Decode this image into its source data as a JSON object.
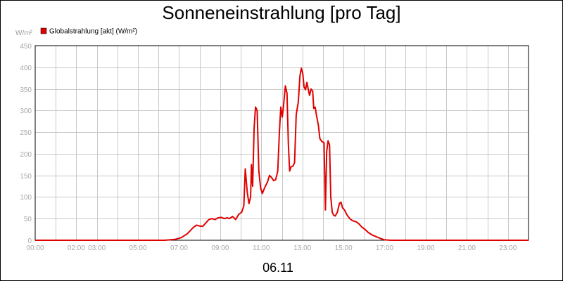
{
  "chart_data": {
    "type": "line",
    "title": "Sonneneinstrahlung [pro Tag]",
    "y_unit": "W/m²",
    "xlabel": "06.11",
    "ylim": [
      0,
      450
    ],
    "xlim_hours": [
      0,
      24
    ],
    "yticks": [
      0,
      50,
      100,
      150,
      200,
      250,
      300,
      350,
      400,
      450
    ],
    "xticks": [
      {
        "t": 0,
        "label": "00:00"
      },
      {
        "t": 2,
        "label": "02:00"
      },
      {
        "t": 3,
        "label": "03:00"
      },
      {
        "t": 5,
        "label": "05:00"
      },
      {
        "t": 7,
        "label": "07:00"
      },
      {
        "t": 9,
        "label": "09:00"
      },
      {
        "t": 11,
        "label": "11:00"
      },
      {
        "t": 13,
        "label": "13:00"
      },
      {
        "t": 15,
        "label": "15:00"
      },
      {
        "t": 17,
        "label": "17:00"
      },
      {
        "t": 19,
        "label": "19:00"
      },
      {
        "t": 21,
        "label": "21:00"
      },
      {
        "t": 23,
        "label": "23:00"
      }
    ],
    "grid": true,
    "legend_position": "top-left",
    "series": [
      {
        "name": "Globalstrahlung [akt] (W/m²)",
        "color": "#e00000",
        "points": [
          [
            0,
            0
          ],
          [
            6.3,
            0
          ],
          [
            6.8,
            2
          ],
          [
            7.1,
            6
          ],
          [
            7.4,
            15
          ],
          [
            7.7,
            30
          ],
          [
            7.85,
            35
          ],
          [
            8.0,
            33
          ],
          [
            8.15,
            32
          ],
          [
            8.3,
            40
          ],
          [
            8.45,
            48
          ],
          [
            8.6,
            50
          ],
          [
            8.75,
            48
          ],
          [
            8.9,
            52
          ],
          [
            9.05,
            53
          ],
          [
            9.2,
            50
          ],
          [
            9.35,
            52
          ],
          [
            9.45,
            50
          ],
          [
            9.6,
            55
          ],
          [
            9.75,
            48
          ],
          [
            9.9,
            60
          ],
          [
            10.05,
            65
          ],
          [
            10.15,
            80
          ],
          [
            10.22,
            165
          ],
          [
            10.32,
            110
          ],
          [
            10.4,
            85
          ],
          [
            10.48,
            100
          ],
          [
            10.52,
            175
          ],
          [
            10.58,
            125
          ],
          [
            10.65,
            260
          ],
          [
            10.72,
            308
          ],
          [
            10.8,
            300
          ],
          [
            10.88,
            160
          ],
          [
            10.97,
            120
          ],
          [
            11.05,
            108
          ],
          [
            11.15,
            120
          ],
          [
            11.3,
            135
          ],
          [
            11.4,
            150
          ],
          [
            11.5,
            145
          ],
          [
            11.6,
            138
          ],
          [
            11.7,
            140
          ],
          [
            11.8,
            160
          ],
          [
            11.88,
            250
          ],
          [
            11.95,
            308
          ],
          [
            12.02,
            285
          ],
          [
            12.08,
            310
          ],
          [
            12.17,
            357
          ],
          [
            12.25,
            340
          ],
          [
            12.32,
            220
          ],
          [
            12.38,
            160
          ],
          [
            12.45,
            170
          ],
          [
            12.55,
            172
          ],
          [
            12.62,
            180
          ],
          [
            12.7,
            290
          ],
          [
            12.8,
            320
          ],
          [
            12.88,
            380
          ],
          [
            12.95,
            398
          ],
          [
            13.02,
            385
          ],
          [
            13.08,
            355
          ],
          [
            13.15,
            348
          ],
          [
            13.22,
            365
          ],
          [
            13.28,
            350
          ],
          [
            13.35,
            335
          ],
          [
            13.42,
            350
          ],
          [
            13.5,
            345
          ],
          [
            13.55,
            305
          ],
          [
            13.62,
            308
          ],
          [
            13.68,
            290
          ],
          [
            13.78,
            265
          ],
          [
            13.85,
            235
          ],
          [
            13.95,
            228
          ],
          [
            14.05,
            226
          ],
          [
            14.12,
            70
          ],
          [
            14.18,
            205
          ],
          [
            14.25,
            230
          ],
          [
            14.32,
            220
          ],
          [
            14.38,
            100
          ],
          [
            14.45,
            65
          ],
          [
            14.52,
            58
          ],
          [
            14.6,
            56
          ],
          [
            14.7,
            65
          ],
          [
            14.8,
            85
          ],
          [
            14.88,
            88
          ],
          [
            14.95,
            75
          ],
          [
            15.05,
            70
          ],
          [
            15.15,
            60
          ],
          [
            15.3,
            50
          ],
          [
            15.45,
            45
          ],
          [
            15.6,
            43
          ],
          [
            15.75,
            38
          ],
          [
            15.9,
            30
          ],
          [
            16.05,
            25
          ],
          [
            16.2,
            18
          ],
          [
            16.4,
            12
          ],
          [
            16.6,
            8
          ],
          [
            16.8,
            4
          ],
          [
            17.0,
            1
          ],
          [
            17.3,
            0
          ],
          [
            24,
            0
          ]
        ]
      }
    ]
  }
}
